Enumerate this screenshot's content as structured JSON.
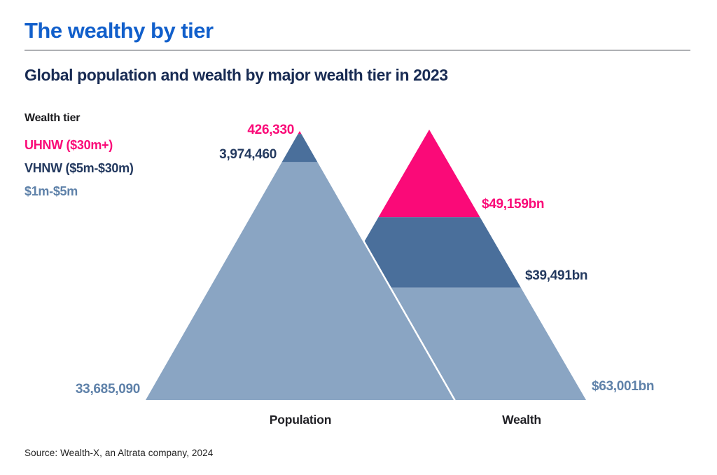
{
  "header": {
    "title": "The wealthy by tier",
    "subtitle": "Global population and wealth by major wealth tier in 2023"
  },
  "legend": {
    "heading": "Wealth tier",
    "items": [
      {
        "id": "uhnw",
        "label": "UHNW ($30m+)",
        "color": "#FA0A78"
      },
      {
        "id": "vhnw",
        "label": "VHNW ($5m-$30m)",
        "color": "#23395F"
      },
      {
        "id": "m1to5",
        "label": "$1m-$5m",
        "color": "#5E81A9"
      }
    ]
  },
  "chart_data": {
    "type": "pyramid",
    "title": "Global population and wealth by major wealth tier in 2023",
    "tiers": [
      "UHNW ($30m+)",
      "VHNW ($5m-$30m)",
      "$1m-$5m"
    ],
    "series": [
      {
        "name": "Population",
        "values": [
          426330,
          3974460,
          33685090
        ],
        "labels": [
          "426,330",
          "3,974,460",
          "33,685,090"
        ]
      },
      {
        "name": "Wealth",
        "values": [
          49159,
          39491,
          63001
        ],
        "labels": [
          "$49,159bn",
          "$39,491bn",
          "$63,001bn"
        ]
      }
    ],
    "colors": {
      "uhnw": "#FA0A78",
      "vhnw_fill": "#4A6F9B",
      "vhnw_text": "#23395F",
      "m1to5_fill": "#8AA5C3",
      "m1to5_text": "#5E81A9",
      "title_blue": "#115FCB",
      "subtitle_navy": "#182B53"
    },
    "legend_position": "top-left",
    "layout_note": "two overlapping pyramids; band heights proportional to tier values, UHNW at apex, $1m-$5m at base; Population pyramid overlaps in front of Wealth pyramid with white seam"
  },
  "footer": {
    "source": "Source: Wealth-X, an Altrata company, 2024"
  }
}
